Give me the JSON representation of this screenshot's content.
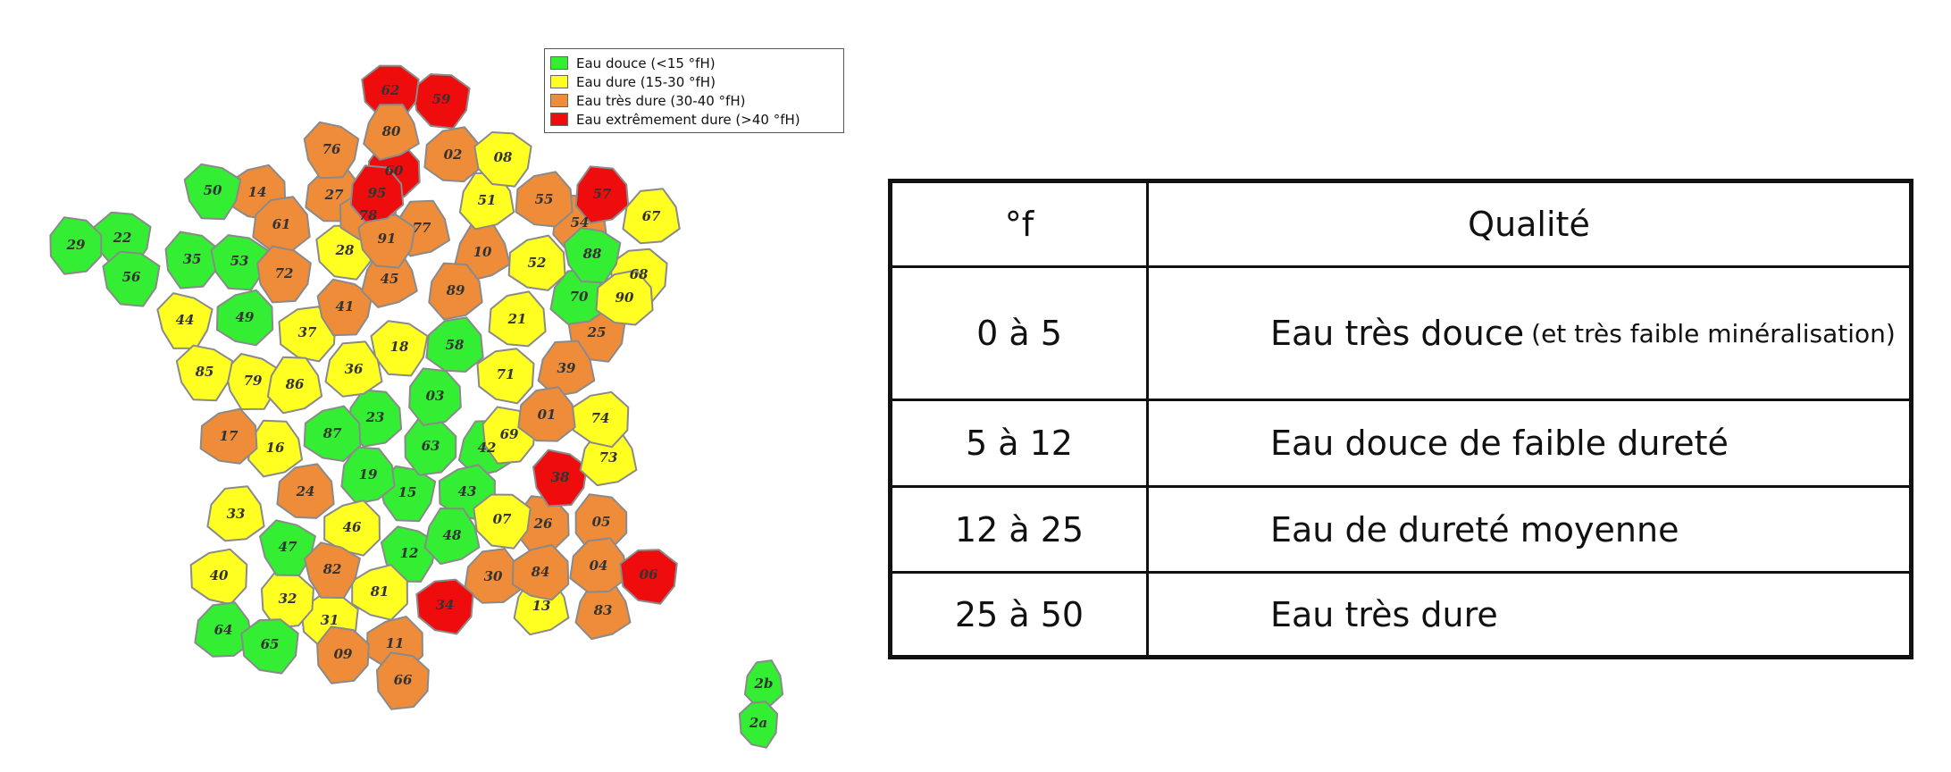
{
  "legend": {
    "items": [
      {
        "label": "Eau douce (<15 °fH)",
        "color": "#33ee33"
      },
      {
        "label": "Eau dure (15-30 °fH)",
        "color": "#ffff22"
      },
      {
        "label": "Eau très dure (30-40 °fH)",
        "color": "#ef8c3a"
      },
      {
        "label": "Eau extrêmement dure (>40 °fH)",
        "color": "#ee0c0c"
      }
    ]
  },
  "map": {
    "departments": {
      "62": "red",
      "59": "red",
      "80": "orange",
      "76": "orange",
      "02": "orange",
      "08": "yellow",
      "60": "red",
      "95": "red",
      "50": "green",
      "14": "orange",
      "27": "orange",
      "57": "red",
      "55": "orange",
      "51": "yellow",
      "67": "yellow",
      "78": "orange",
      "91": "orange",
      "77": "orange",
      "54": "orange",
      "88": "green",
      "29": "green",
      "22": "green",
      "61": "orange",
      "28": "yellow",
      "35": "green",
      "53": "green",
      "10": "orange",
      "52": "yellow",
      "68": "yellow",
      "56": "green",
      "72": "orange",
      "45": "orange",
      "89": "orange",
      "70": "green",
      "90": "yellow",
      "44": "yellow",
      "49": "green",
      "41": "orange",
      "21": "yellow",
      "25": "orange",
      "37": "yellow",
      "18": "yellow",
      "58": "green",
      "85": "yellow",
      "79": "yellow",
      "86": "yellow",
      "36": "yellow",
      "39": "orange",
      "71": "yellow",
      "03": "green",
      "01": "orange",
      "74": "yellow",
      "17": "orange",
      "87": "green",
      "23": "green",
      "63": "green",
      "42": "green",
      "69": "yellow",
      "16": "yellow",
      "73": "yellow",
      "19": "green",
      "38": "red",
      "24": "orange",
      "15": "green",
      "43": "green",
      "33": "yellow",
      "46": "yellow",
      "07": "yellow",
      "26": "orange",
      "05": "orange",
      "48": "green",
      "47": "green",
      "12": "green",
      "40": "yellow",
      "82": "orange",
      "81": "yellow",
      "30": "orange",
      "84": "orange",
      "04": "orange",
      "06": "red",
      "32": "yellow",
      "13": "yellow",
      "34": "red",
      "83": "orange",
      "31": "yellow",
      "64": "green",
      "65": "green",
      "09": "orange",
      "11": "orange",
      "66": "orange",
      "2b": "green",
      "2a": "green"
    }
  },
  "table": {
    "header": {
      "col1": "°f",
      "col2": "Qualité"
    },
    "rows": [
      {
        "range": "0  à  5",
        "quality": "Eau très douce",
        "note": "(et très faible minéralisation)"
      },
      {
        "range": "5  à  12",
        "quality": "Eau douce de faible dureté"
      },
      {
        "range": "12  à  25",
        "quality": "Eau de dureté moyenne"
      },
      {
        "range": "25  à  50",
        "quality": "Eau très dure"
      }
    ]
  }
}
